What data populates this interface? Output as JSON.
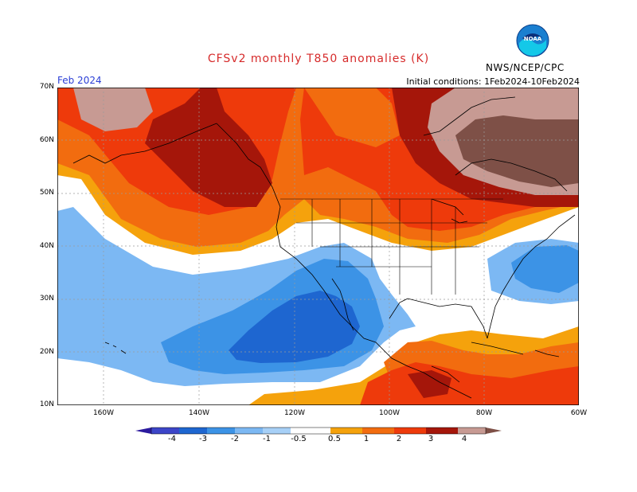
{
  "header": {
    "title": "CFSv2 monthly T850 anomalies (K)",
    "month": "Feb 2024",
    "initial_conditions": "Initial conditions: 1Feb2024-10Feb2024",
    "agency": "NWS/NCEP/CPC",
    "logo_text": "NOAA"
  },
  "map": {
    "lat_labels": [
      "70N",
      "60N",
      "50N",
      "40N",
      "30N",
      "20N",
      "10N"
    ],
    "lon_labels": [
      "160W",
      "140W",
      "120W",
      "100W",
      "80W",
      "60W"
    ],
    "colors": {
      "cold4": "#2b1a9e",
      "cold3": "#3c45c8",
      "cold2": "#1e66d0",
      "cold1": "#3c93e6",
      "cold05": "#7cb8f3",
      "neutral": "#ffffff",
      "warm05": "#f5a20c",
      "warm1": "#f26c0f",
      "warm2": "#ee3a0b",
      "warm3": "#a5160a",
      "warm4": "#c79a93",
      "warm5": "#7e5047",
      "coast": "#000000",
      "grid": "#9a9a9a"
    }
  },
  "colorbar": {
    "labels": [
      "-4",
      "-3",
      "-2",
      "-1",
      "-0.5",
      "0.5",
      "1",
      "2",
      "3",
      "4"
    ]
  }
}
